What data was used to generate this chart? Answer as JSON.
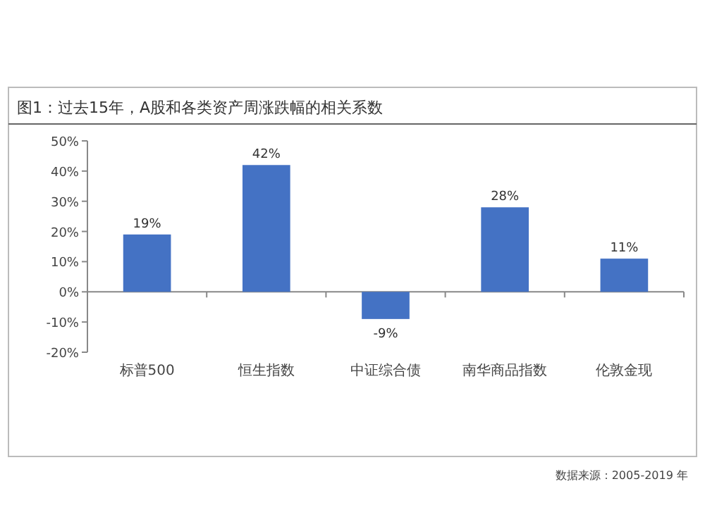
{
  "chart_data": {
    "type": "bar",
    "title": "图1：过去15年，A股和各类资产周涨跌幅的相关系数",
    "categories": [
      "标普500",
      "恒生指数",
      "中证综合债",
      "南华商品指数",
      "伦敦金现"
    ],
    "values": [
      19,
      42,
      -9,
      28,
      11
    ],
    "value_labels": [
      "19%",
      "42%",
      "-9%",
      "28%",
      "11%"
    ],
    "color": "#4472c4",
    "ylim": [
      -20,
      50
    ],
    "yticks": [
      {
        "value": -20,
        "label": "-20%"
      },
      {
        "value": -10,
        "label": "-10%"
      },
      {
        "value": 0,
        "label": "0%"
      },
      {
        "value": 10,
        "label": "10%"
      },
      {
        "value": 20,
        "label": "20%"
      },
      {
        "value": 30,
        "label": "30%"
      },
      {
        "value": 40,
        "label": "40%"
      },
      {
        "value": 50,
        "label": "50%"
      }
    ],
    "annotations": [
      "数据来源：2005-2019 年"
    ]
  }
}
